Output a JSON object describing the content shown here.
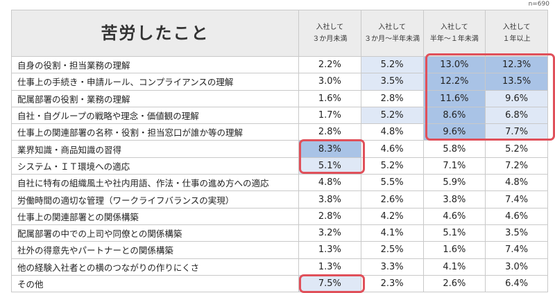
{
  "n_label": "n=690",
  "chart_data": {
    "type": "table",
    "title": "苦労したこと",
    "columns": [
      "入社して\n３か月未満",
      "入社して\n３か月～半年未満",
      "入社して\n半年～１年未満",
      "入社して\n１年以上"
    ],
    "rows": [
      {
        "label": "自身の役割・担当業務の理解",
        "values": [
          "2.2%",
          "5.2%",
          "13.0%",
          "12.3%"
        ]
      },
      {
        "label": "仕事上の手続き・申請ルール、コンプライアンスの理解",
        "values": [
          "3.0%",
          "3.5%",
          "12.2%",
          "13.5%"
        ]
      },
      {
        "label": "配属部署の役割・業務の理解",
        "values": [
          "1.6%",
          "2.8%",
          "11.6%",
          "9.6%"
        ]
      },
      {
        "label": "自社・自グループの戦略や理念・価値観の理解",
        "values": [
          "1.7%",
          "5.2%",
          "8.6%",
          "6.8%"
        ]
      },
      {
        "label": "仕事上の関連部署の名称・役割・担当窓口が誰か等の理解",
        "values": [
          "2.8%",
          "4.8%",
          "9.6%",
          "7.7%"
        ]
      },
      {
        "label": "業界知識・商品知識の習得",
        "values": [
          "8.3%",
          "4.6%",
          "5.8%",
          "5.2%"
        ]
      },
      {
        "label": "システム・ＩＴ環境への適応",
        "values": [
          "5.1%",
          "5.2%",
          "7.1%",
          "7.2%"
        ]
      },
      {
        "label": "自社に特有の組織風土や社内用語、作法・仕事の進め方への適応",
        "values": [
          "4.8%",
          "5.5%",
          "5.9%",
          "4.8%"
        ]
      },
      {
        "label": "労働時間の適切な管理（ワークライフバランスの実現）",
        "values": [
          "3.8%",
          "2.6%",
          "3.8%",
          "7.4%"
        ]
      },
      {
        "label": "仕事上の関連部署との関係構築",
        "values": [
          "2.8%",
          "4.2%",
          "4.6%",
          "4.6%"
        ]
      },
      {
        "label": "配属部署の中での上司や同僚との関係構築",
        "values": [
          "3.2%",
          "4.1%",
          "5.1%",
          "3.5%"
        ]
      },
      {
        "label": "社外の得意先やパートナーとの関係構築",
        "values": [
          "1.3%",
          "2.5%",
          "1.6%",
          "7.4%"
        ]
      },
      {
        "label": "他の経験入社者との横のつながりの作りにくさ",
        "values": [
          "1.3%",
          "3.3%",
          "4.1%",
          "3.0%"
        ]
      },
      {
        "label": "その他",
        "values": [
          "7.5%",
          "2.3%",
          "2.6%",
          "6.4%"
        ]
      }
    ],
    "shading_colors": {
      "strong": "#a9c3e6",
      "light": "#dfe8f6",
      "none": "#ffffff"
    },
    "highlight_color": "#e0505a"
  }
}
